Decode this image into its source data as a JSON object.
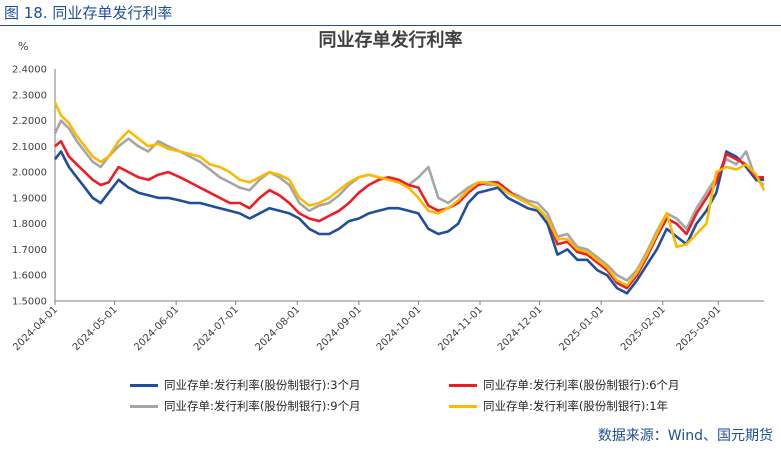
{
  "caption": "图 18.  同业存单发行利率",
  "source": "数据来源：Wind、国元期货",
  "colors": {
    "series1": "#1f4e9c",
    "series2": "#ee1c25",
    "series3": "#a6a6a6",
    "series4": "#fbb900",
    "axis": "#7f7f7f",
    "caption": "#1f4e9c"
  },
  "chart_data": {
    "type": "line",
    "title": "同业存单发行利率",
    "ylabel": "%",
    "ylim": [
      1.5,
      2.4
    ],
    "yticks": [
      "1.5000",
      "1.6000",
      "1.7000",
      "1.8000",
      "1.9000",
      "2.0000",
      "2.1000",
      "2.2000",
      "2.3000",
      "2.4000"
    ],
    "xlim": [
      "2024-04-01",
      "2025-03-24"
    ],
    "xticks": [
      "2024-04-01",
      "2024-05-01",
      "2024-06-01",
      "2024-07-01",
      "2024-08-01",
      "2024-09-01",
      "2024-10-01",
      "2024-11-01",
      "2024-12-01",
      "2025-01-01",
      "2025-02-01",
      "2025-03-01"
    ],
    "grid": false,
    "legend_position": "bottom",
    "series": [
      {
        "name": "同业存单:发行利率(股份制银行):3个月",
        "x": [
          "2024-04-01",
          "2024-04-04",
          "2024-04-08",
          "2024-04-12",
          "2024-04-16",
          "2024-04-20",
          "2024-04-24",
          "2024-04-28",
          "2024-05-03",
          "2024-05-08",
          "2024-05-13",
          "2024-05-18",
          "2024-05-23",
          "2024-05-28",
          "2024-06-03",
          "2024-06-08",
          "2024-06-13",
          "2024-06-18",
          "2024-06-23",
          "2024-06-28",
          "2024-07-03",
          "2024-07-08",
          "2024-07-13",
          "2024-07-18",
          "2024-07-23",
          "2024-07-28",
          "2024-08-02",
          "2024-08-07",
          "2024-08-12",
          "2024-08-17",
          "2024-08-22",
          "2024-08-27",
          "2024-09-01",
          "2024-09-06",
          "2024-09-11",
          "2024-09-16",
          "2024-09-21",
          "2024-09-26",
          "2024-10-01",
          "2024-10-06",
          "2024-10-11",
          "2024-10-16",
          "2024-10-21",
          "2024-10-26",
          "2024-10-31",
          "2024-11-05",
          "2024-11-10",
          "2024-11-15",
          "2024-11-20",
          "2024-11-25",
          "2024-11-30",
          "2024-12-05",
          "2024-12-10",
          "2024-12-15",
          "2024-12-20",
          "2024-12-25",
          "2024-12-30",
          "2025-01-04",
          "2025-01-09",
          "2025-01-14",
          "2025-01-19",
          "2025-01-24",
          "2025-01-29",
          "2025-02-03",
          "2025-02-08",
          "2025-02-13",
          "2025-02-18",
          "2025-02-23",
          "2025-02-28",
          "2025-03-05",
          "2025-03-10",
          "2025-03-15",
          "2025-03-20",
          "2025-03-24"
        ],
        "values": [
          2.05,
          2.08,
          2.02,
          1.98,
          1.94,
          1.9,
          1.88,
          1.92,
          1.97,
          1.94,
          1.92,
          1.91,
          1.9,
          1.9,
          1.89,
          1.88,
          1.88,
          1.87,
          1.86,
          1.85,
          1.84,
          1.82,
          1.84,
          1.86,
          1.85,
          1.84,
          1.82,
          1.78,
          1.76,
          1.76,
          1.78,
          1.81,
          1.82,
          1.84,
          1.85,
          1.86,
          1.86,
          1.85,
          1.84,
          1.78,
          1.76,
          1.77,
          1.8,
          1.88,
          1.92,
          1.93,
          1.94,
          1.9,
          1.88,
          1.86,
          1.85,
          1.8,
          1.68,
          1.7,
          1.66,
          1.66,
          1.62,
          1.6,
          1.55,
          1.53,
          1.58,
          1.64,
          1.7,
          1.78,
          1.75,
          1.72,
          1.8,
          1.85,
          1.92,
          2.08,
          2.06,
          2.02,
          1.97,
          1.97
        ]
      },
      {
        "name": "同业存单:发行利率(股份制银行):6个月",
        "x": [
          "2024-04-01",
          "2024-04-04",
          "2024-04-08",
          "2024-04-12",
          "2024-04-16",
          "2024-04-20",
          "2024-04-24",
          "2024-04-28",
          "2024-05-03",
          "2024-05-08",
          "2024-05-13",
          "2024-05-18",
          "2024-05-23",
          "2024-05-28",
          "2024-06-03",
          "2024-06-08",
          "2024-06-13",
          "2024-06-18",
          "2024-06-23",
          "2024-06-28",
          "2024-07-03",
          "2024-07-08",
          "2024-07-13",
          "2024-07-18",
          "2024-07-23",
          "2024-07-28",
          "2024-08-02",
          "2024-08-07",
          "2024-08-12",
          "2024-08-17",
          "2024-08-22",
          "2024-08-27",
          "2024-09-01",
          "2024-09-06",
          "2024-09-11",
          "2024-09-16",
          "2024-09-21",
          "2024-09-26",
          "2024-10-01",
          "2024-10-06",
          "2024-10-11",
          "2024-10-16",
          "2024-10-21",
          "2024-10-26",
          "2024-10-31",
          "2024-11-05",
          "2024-11-10",
          "2024-11-15",
          "2024-11-20",
          "2024-11-25",
          "2024-11-30",
          "2024-12-05",
          "2024-12-10",
          "2024-12-15",
          "2024-12-20",
          "2024-12-25",
          "2024-12-30",
          "2025-01-04",
          "2025-01-09",
          "2025-01-14",
          "2025-01-19",
          "2025-01-24",
          "2025-01-29",
          "2025-02-03",
          "2025-02-08",
          "2025-02-13",
          "2025-02-18",
          "2025-02-23",
          "2025-02-28",
          "2025-03-05",
          "2025-03-10",
          "2025-03-15",
          "2025-03-20",
          "2025-03-24"
        ],
        "values": [
          2.1,
          2.12,
          2.06,
          2.03,
          2.0,
          1.97,
          1.95,
          1.96,
          2.02,
          2.0,
          1.98,
          1.97,
          1.99,
          2.0,
          1.98,
          1.96,
          1.94,
          1.92,
          1.9,
          1.88,
          1.88,
          1.86,
          1.9,
          1.93,
          1.91,
          1.88,
          1.84,
          1.82,
          1.81,
          1.83,
          1.85,
          1.88,
          1.92,
          1.95,
          1.97,
          1.98,
          1.97,
          1.95,
          1.94,
          1.87,
          1.85,
          1.86,
          1.88,
          1.92,
          1.95,
          1.96,
          1.96,
          1.93,
          1.9,
          1.88,
          1.86,
          1.82,
          1.72,
          1.73,
          1.69,
          1.68,
          1.65,
          1.62,
          1.57,
          1.55,
          1.6,
          1.67,
          1.75,
          1.82,
          1.8,
          1.76,
          1.84,
          1.9,
          1.96,
          2.07,
          2.05,
          2.03,
          1.98,
          1.98
        ]
      },
      {
        "name": "同业存单:发行利率(股份制银行):9个月",
        "x": [
          "2024-04-01",
          "2024-04-04",
          "2024-04-08",
          "2024-04-12",
          "2024-04-16",
          "2024-04-20",
          "2024-04-24",
          "2024-04-28",
          "2024-05-03",
          "2024-05-08",
          "2024-05-13",
          "2024-05-18",
          "2024-05-23",
          "2024-05-28",
          "2024-06-03",
          "2024-06-08",
          "2024-06-13",
          "2024-06-18",
          "2024-06-23",
          "2024-06-28",
          "2024-07-03",
          "2024-07-08",
          "2024-07-13",
          "2024-07-18",
          "2024-07-23",
          "2024-07-28",
          "2024-08-02",
          "2024-08-07",
          "2024-08-12",
          "2024-08-17",
          "2024-08-22",
          "2024-08-27",
          "2024-09-01",
          "2024-09-06",
          "2024-09-11",
          "2024-09-16",
          "2024-09-21",
          "2024-09-26",
          "2024-10-01",
          "2024-10-06",
          "2024-10-11",
          "2024-10-16",
          "2024-10-21",
          "2024-10-26",
          "2024-10-31",
          "2024-11-05",
          "2024-11-10",
          "2024-11-15",
          "2024-11-20",
          "2024-11-25",
          "2024-11-30",
          "2024-12-05",
          "2024-12-10",
          "2024-12-15",
          "2024-12-20",
          "2024-12-25",
          "2024-12-30",
          "2025-01-04",
          "2025-01-09",
          "2025-01-14",
          "2025-01-19",
          "2025-01-24",
          "2025-01-29",
          "2025-02-03",
          "2025-02-08",
          "2025-02-13",
          "2025-02-18",
          "2025-02-23",
          "2025-02-28",
          "2025-03-05",
          "2025-03-10",
          "2025-03-15",
          "2025-03-20",
          "2025-03-24"
        ],
        "values": [
          2.15,
          2.2,
          2.17,
          2.12,
          2.08,
          2.04,
          2.02,
          2.06,
          2.1,
          2.13,
          2.1,
          2.08,
          2.12,
          2.1,
          2.08,
          2.06,
          2.04,
          2.01,
          1.98,
          1.96,
          1.94,
          1.93,
          1.97,
          2.0,
          1.98,
          1.95,
          1.88,
          1.85,
          1.87,
          1.88,
          1.91,
          1.95,
          1.98,
          1.99,
          1.98,
          1.97,
          1.96,
          1.95,
          1.98,
          2.02,
          1.9,
          1.88,
          1.91,
          1.94,
          1.96,
          1.95,
          1.95,
          1.92,
          1.91,
          1.89,
          1.88,
          1.84,
          1.75,
          1.76,
          1.71,
          1.7,
          1.67,
          1.64,
          1.6,
          1.58,
          1.62,
          1.69,
          1.77,
          1.84,
          1.82,
          1.78,
          1.86,
          1.92,
          1.98,
          2.05,
          2.03,
          2.08,
          1.97,
          1.95
        ]
      },
      {
        "name": "同业存单:发行利率(股份制银行):1年",
        "x": [
          "2024-04-01",
          "2024-04-04",
          "2024-04-08",
          "2024-04-12",
          "2024-04-16",
          "2024-04-20",
          "2024-04-24",
          "2024-04-28",
          "2024-05-03",
          "2024-05-08",
          "2024-05-13",
          "2024-05-18",
          "2024-05-23",
          "2024-05-28",
          "2024-06-03",
          "2024-06-08",
          "2024-06-13",
          "2024-06-18",
          "2024-06-23",
          "2024-06-28",
          "2024-07-03",
          "2024-07-08",
          "2024-07-13",
          "2024-07-18",
          "2024-07-23",
          "2024-07-28",
          "2024-08-02",
          "2024-08-07",
          "2024-08-12",
          "2024-08-17",
          "2024-08-22",
          "2024-08-27",
          "2024-09-01",
          "2024-09-06",
          "2024-09-11",
          "2024-09-16",
          "2024-09-21",
          "2024-09-26",
          "2024-10-01",
          "2024-10-06",
          "2024-10-11",
          "2024-10-16",
          "2024-10-21",
          "2024-10-26",
          "2024-10-31",
          "2024-11-05",
          "2024-11-10",
          "2024-11-15",
          "2024-11-20",
          "2024-11-25",
          "2024-11-30",
          "2024-12-05",
          "2024-12-10",
          "2024-12-15",
          "2024-12-20",
          "2024-12-25",
          "2024-12-30",
          "2025-01-04",
          "2025-01-09",
          "2025-01-14",
          "2025-01-19",
          "2025-01-24",
          "2025-01-29",
          "2025-02-03",
          "2025-02-08",
          "2025-02-13",
          "2025-02-18",
          "2025-02-23",
          "2025-02-28",
          "2025-03-05",
          "2025-03-10",
          "2025-03-15",
          "2025-03-20",
          "2025-03-24"
        ],
        "values": [
          2.27,
          2.22,
          2.19,
          2.14,
          2.1,
          2.06,
          2.04,
          2.06,
          2.12,
          2.16,
          2.13,
          2.1,
          2.11,
          2.09,
          2.08,
          2.07,
          2.06,
          2.03,
          2.02,
          2.0,
          1.97,
          1.96,
          1.98,
          2.0,
          1.99,
          1.97,
          1.9,
          1.87,
          1.88,
          1.9,
          1.93,
          1.96,
          1.98,
          1.99,
          1.98,
          1.97,
          1.96,
          1.94,
          1.9,
          1.85,
          1.84,
          1.86,
          1.89,
          1.93,
          1.96,
          1.96,
          1.95,
          1.92,
          1.9,
          1.88,
          1.86,
          1.82,
          1.74,
          1.74,
          1.7,
          1.69,
          1.66,
          1.63,
          1.58,
          1.56,
          1.61,
          1.68,
          1.76,
          1.84,
          1.71,
          1.72,
          1.76,
          1.8,
          2.0,
          2.02,
          2.01,
          2.03,
          1.99,
          1.93
        ]
      }
    ]
  }
}
